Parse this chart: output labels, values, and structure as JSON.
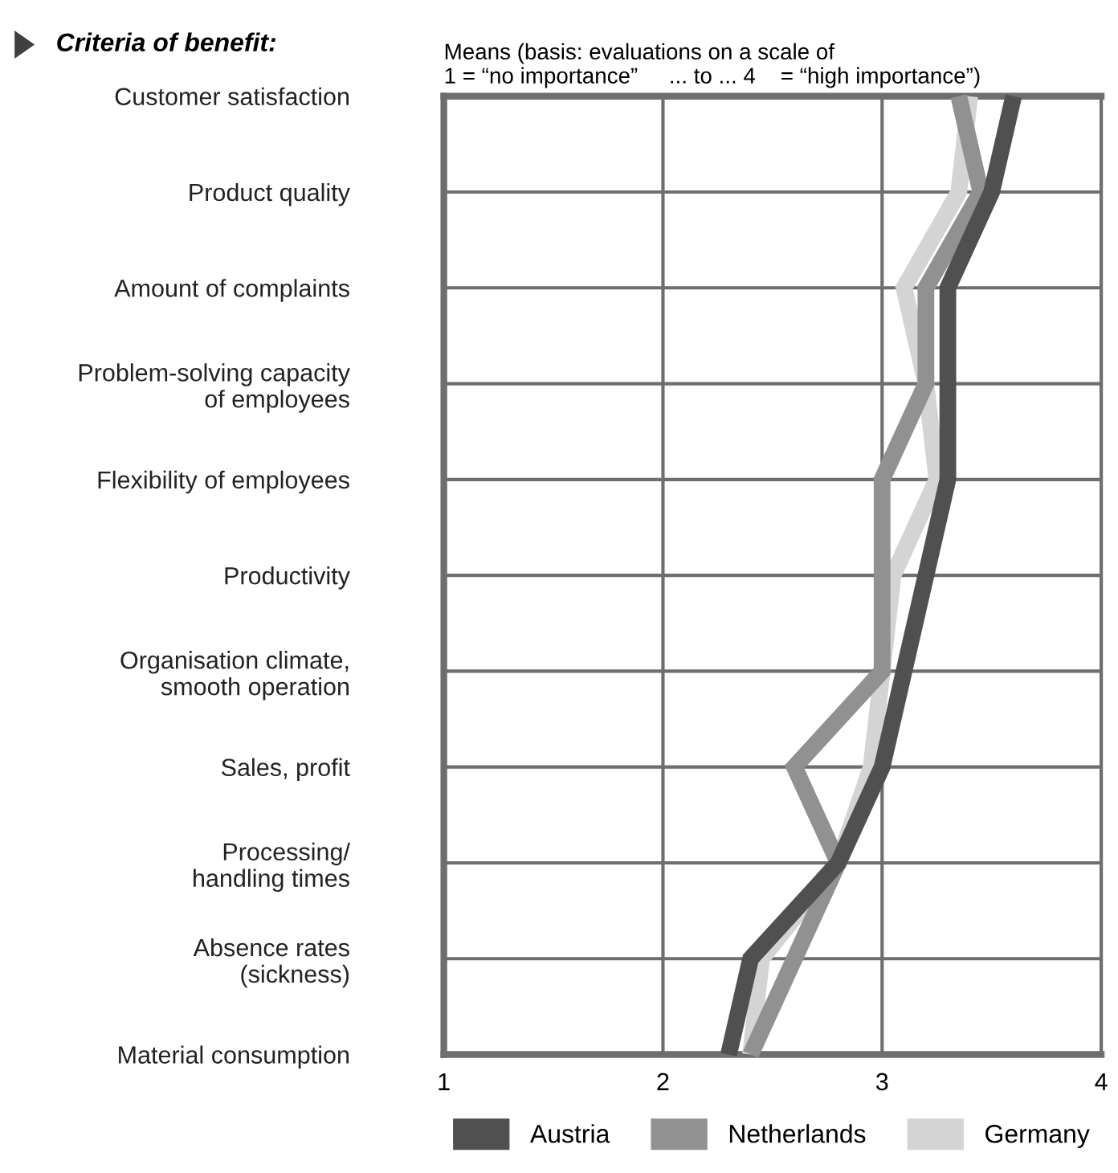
{
  "chart_data": {
    "type": "line",
    "orientation": "horizontal",
    "title": "Criteria of benefit:",
    "subtitle": "Means (basis: evaluations on a scale of\n1 = “no importance”     ... to ... 4    = “high importance”)",
    "categories": [
      "Customer satisfaction",
      "Product quality",
      "Amount of complaints",
      "Problem-solving capacity\nof employees",
      "Flexibility of employees",
      "Productivity",
      "Organisation climate,\nsmooth operation",
      "Sales, profit",
      "Processing/\nhandling times",
      "Absence rates\n(sickness)",
      "Material consumption"
    ],
    "series": [
      {
        "name": "Austria",
        "color": "#505050",
        "values": [
          3.6,
          3.5,
          3.3,
          3.3,
          3.3,
          3.2,
          3.1,
          3.0,
          2.8,
          2.4,
          2.3
        ]
      },
      {
        "name": "Netherlands",
        "color": "#919191",
        "values": [
          3.35,
          3.45,
          3.2,
          3.2,
          3.0,
          3.0,
          3.0,
          2.6,
          2.8,
          2.6,
          2.4
        ]
      },
      {
        "name": "Germany",
        "color": "#d4d4d4",
        "values": [
          3.4,
          3.35,
          3.1,
          3.2,
          3.25,
          3.05,
          3.0,
          2.95,
          2.8,
          2.45,
          2.4
        ]
      }
    ],
    "xlim": [
      1,
      4
    ],
    "xticks": [
      1,
      2,
      3,
      4
    ],
    "grid": true,
    "legend": "bottom",
    "marker": "none",
    "line_style": "solid"
  }
}
